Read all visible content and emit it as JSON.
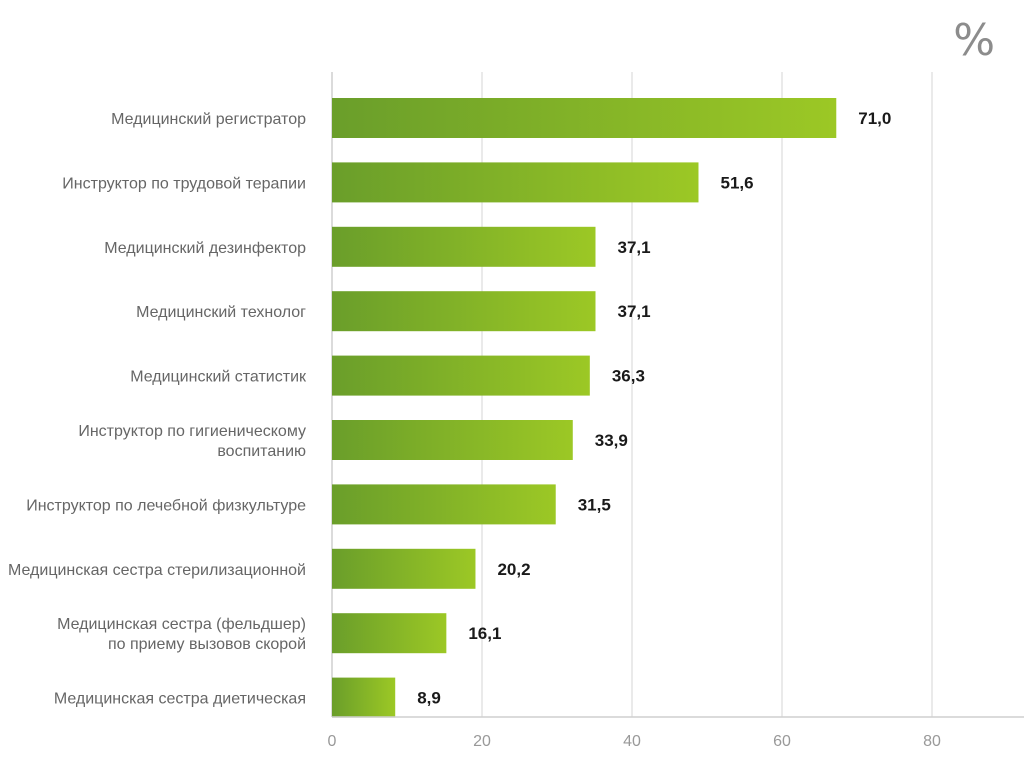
{
  "chart_data": {
    "type": "bar",
    "orientation": "horizontal",
    "unit": "%",
    "categories": [
      "Медицинский регистратор",
      "Инструктор по трудовой терапии",
      "Медицинский дезинфектор",
      "Медицинский технолог",
      "Медицинский статистик",
      "Инструктор по гигиеническому\nвоспитанию",
      "Инструктор по лечебной физкультуре",
      "Медицинская сестра стерилизационной",
      "Медицинская сестра (фельдшер)\nпо приему вызовов скорой",
      "Медицинская сестра диетическая"
    ],
    "values": [
      71.0,
      51.6,
      37.1,
      37.1,
      36.3,
      33.9,
      31.5,
      20.2,
      16.1,
      8.9
    ],
    "value_labels": [
      "71,0",
      "51,6",
      "37,1",
      "37,1",
      "36,3",
      "33,9",
      "31,5",
      "20,2",
      "16,1",
      "8,9"
    ],
    "x_ticks": [
      0,
      20,
      40,
      60,
      80
    ],
    "xlim": [
      0,
      90
    ],
    "grid": true,
    "bar_color_start": "#6a9e2a",
    "bar_color_end": "#9cc825"
  }
}
